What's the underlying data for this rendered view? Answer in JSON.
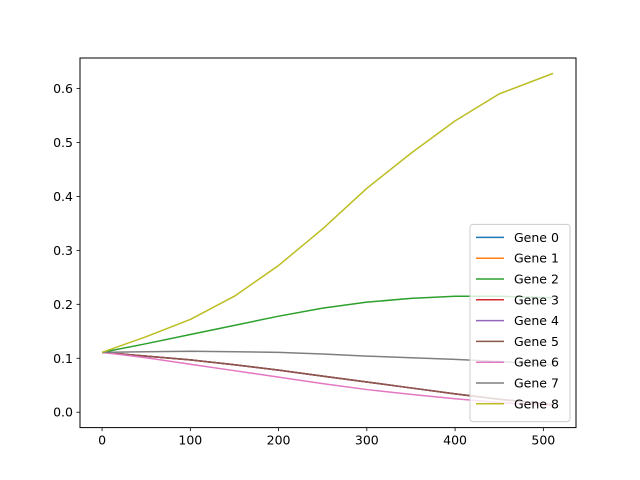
{
  "chart_data": {
    "type": "line",
    "title": "",
    "xlabel": "",
    "ylabel": "",
    "xlim": [
      -25,
      537
    ],
    "ylim": [
      -0.0285,
      0.6565
    ],
    "x_ticks": [
      0,
      100,
      200,
      300,
      400,
      500
    ],
    "y_ticks": [
      0.0,
      0.1,
      0.2,
      0.3,
      0.4,
      0.5,
      0.6
    ],
    "x_tick_labels": [
      "0",
      "100",
      "200",
      "300",
      "400",
      "500"
    ],
    "y_tick_labels": [
      "0.0",
      "0.1",
      "0.2",
      "0.3",
      "0.4",
      "0.5",
      "0.6"
    ],
    "grid": false,
    "legend_position": "lower-right",
    "x": [
      0,
      50,
      100,
      150,
      200,
      250,
      300,
      350,
      400,
      450,
      511
    ],
    "series": [
      {
        "name": "Gene 0",
        "color": "#1f77b4",
        "values": [
          0.111,
          0.104,
          0.097,
          0.088,
          0.078,
          0.067,
          0.056,
          0.045,
          0.034,
          0.024,
          0.014
        ]
      },
      {
        "name": "Gene 1",
        "color": "#ff7f0e",
        "values": [
          0.111,
          0.104,
          0.097,
          0.088,
          0.078,
          0.067,
          0.056,
          0.045,
          0.034,
          0.024,
          0.014
        ]
      },
      {
        "name": "Gene 2",
        "color": "#2ca02c",
        "values": [
          0.111,
          0.127,
          0.144,
          0.161,
          0.178,
          0.193,
          0.204,
          0.211,
          0.215,
          0.215,
          0.212
        ]
      },
      {
        "name": "Gene 3",
        "color": "#d62728",
        "values": [
          0.111,
          0.104,
          0.097,
          0.088,
          0.078,
          0.067,
          0.056,
          0.045,
          0.034,
          0.024,
          0.014
        ]
      },
      {
        "name": "Gene 4",
        "color": "#9467bd",
        "values": [
          0.111,
          0.104,
          0.097,
          0.088,
          0.078,
          0.067,
          0.056,
          0.045,
          0.034,
          0.024,
          0.014
        ]
      },
      {
        "name": "Gene 5",
        "color": "#8c564b",
        "values": [
          0.111,
          0.104,
          0.097,
          0.088,
          0.078,
          0.067,
          0.056,
          0.045,
          0.034,
          0.024,
          0.014
        ]
      },
      {
        "name": "Gene 6",
        "color": "#e377c2",
        "values": [
          0.111,
          0.101,
          0.089,
          0.077,
          0.065,
          0.053,
          0.042,
          0.033,
          0.025,
          0.018,
          0.012
        ]
      },
      {
        "name": "Gene 7",
        "color": "#7f7f7f",
        "values": [
          0.111,
          0.112,
          0.113,
          0.112,
          0.111,
          0.108,
          0.104,
          0.101,
          0.098,
          0.094,
          0.088
        ]
      },
      {
        "name": "Gene 8",
        "color": "#bcbd22",
        "values": [
          0.111,
          0.14,
          0.172,
          0.215,
          0.272,
          0.34,
          0.415,
          0.48,
          0.54,
          0.59,
          0.628
        ]
      }
    ]
  }
}
